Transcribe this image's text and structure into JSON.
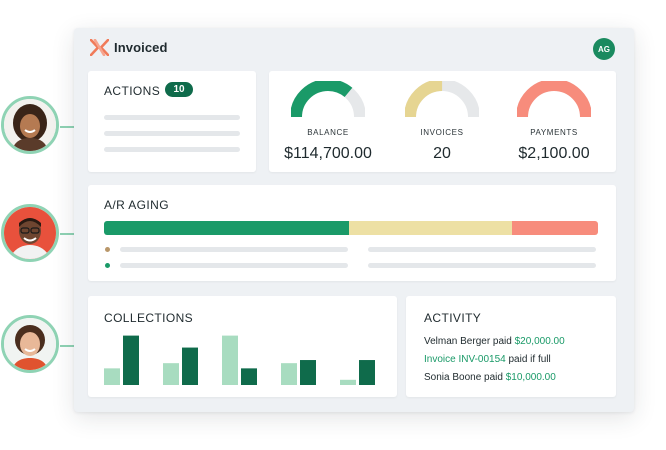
{
  "app": {
    "name": "Invoiced",
    "user_initials": "AG",
    "logo_icon": "invoiced-logo-icon"
  },
  "actions": {
    "title": "ACTIONS",
    "count": "10"
  },
  "metrics": [
    {
      "label": "BALANCE",
      "value": "$114,700.00",
      "fill": 0.72,
      "color": "#1a9a68"
    },
    {
      "label": "INVOICES",
      "value": "20",
      "fill": 0.5,
      "color": "#e6d592"
    },
    {
      "label": "PAYMENTS",
      "value": "$2,100.00",
      "fill": 1.0,
      "color": "#f78c7c"
    }
  ],
  "aging": {
    "title": "A/R AGING",
    "segments": [
      {
        "share": 0.495,
        "color": "#1a9a68"
      },
      {
        "share": 0.33,
        "color": "#ede0a4"
      },
      {
        "share": 0.175,
        "color": "#f78c7c"
      }
    ],
    "legend_colors": [
      "#b9976a",
      "#1a9a68"
    ]
  },
  "collections": {
    "title": "COLLECTIONS",
    "groups": [
      {
        "light": 0.32,
        "dark": 0.95
      },
      {
        "light": 0.42,
        "dark": 0.72
      },
      {
        "light": 0.95,
        "dark": 0.32
      },
      {
        "light": 0.42,
        "dark": 0.48
      },
      {
        "light": 0.1,
        "dark": 0.48
      }
    ],
    "light_color": "#a8dcc0",
    "dark_color": "#0f6b4b"
  },
  "activity": {
    "title": "ACTIVITY",
    "line1": {
      "prefix": "Velman Berger paid ",
      "amount": "$20,000.00"
    },
    "line2": {
      "link": "Invoice INV-00154",
      "suffix": " paid if full"
    },
    "line3": {
      "prefix": "Sonia Boone paid ",
      "amount": "$10,000.00"
    }
  },
  "colors": {
    "accent": "#1a9a68",
    "accent_dark": "#0f6b4b",
    "connector": "#8fd3b4",
    "logo_orange": "#f07b5a"
  }
}
